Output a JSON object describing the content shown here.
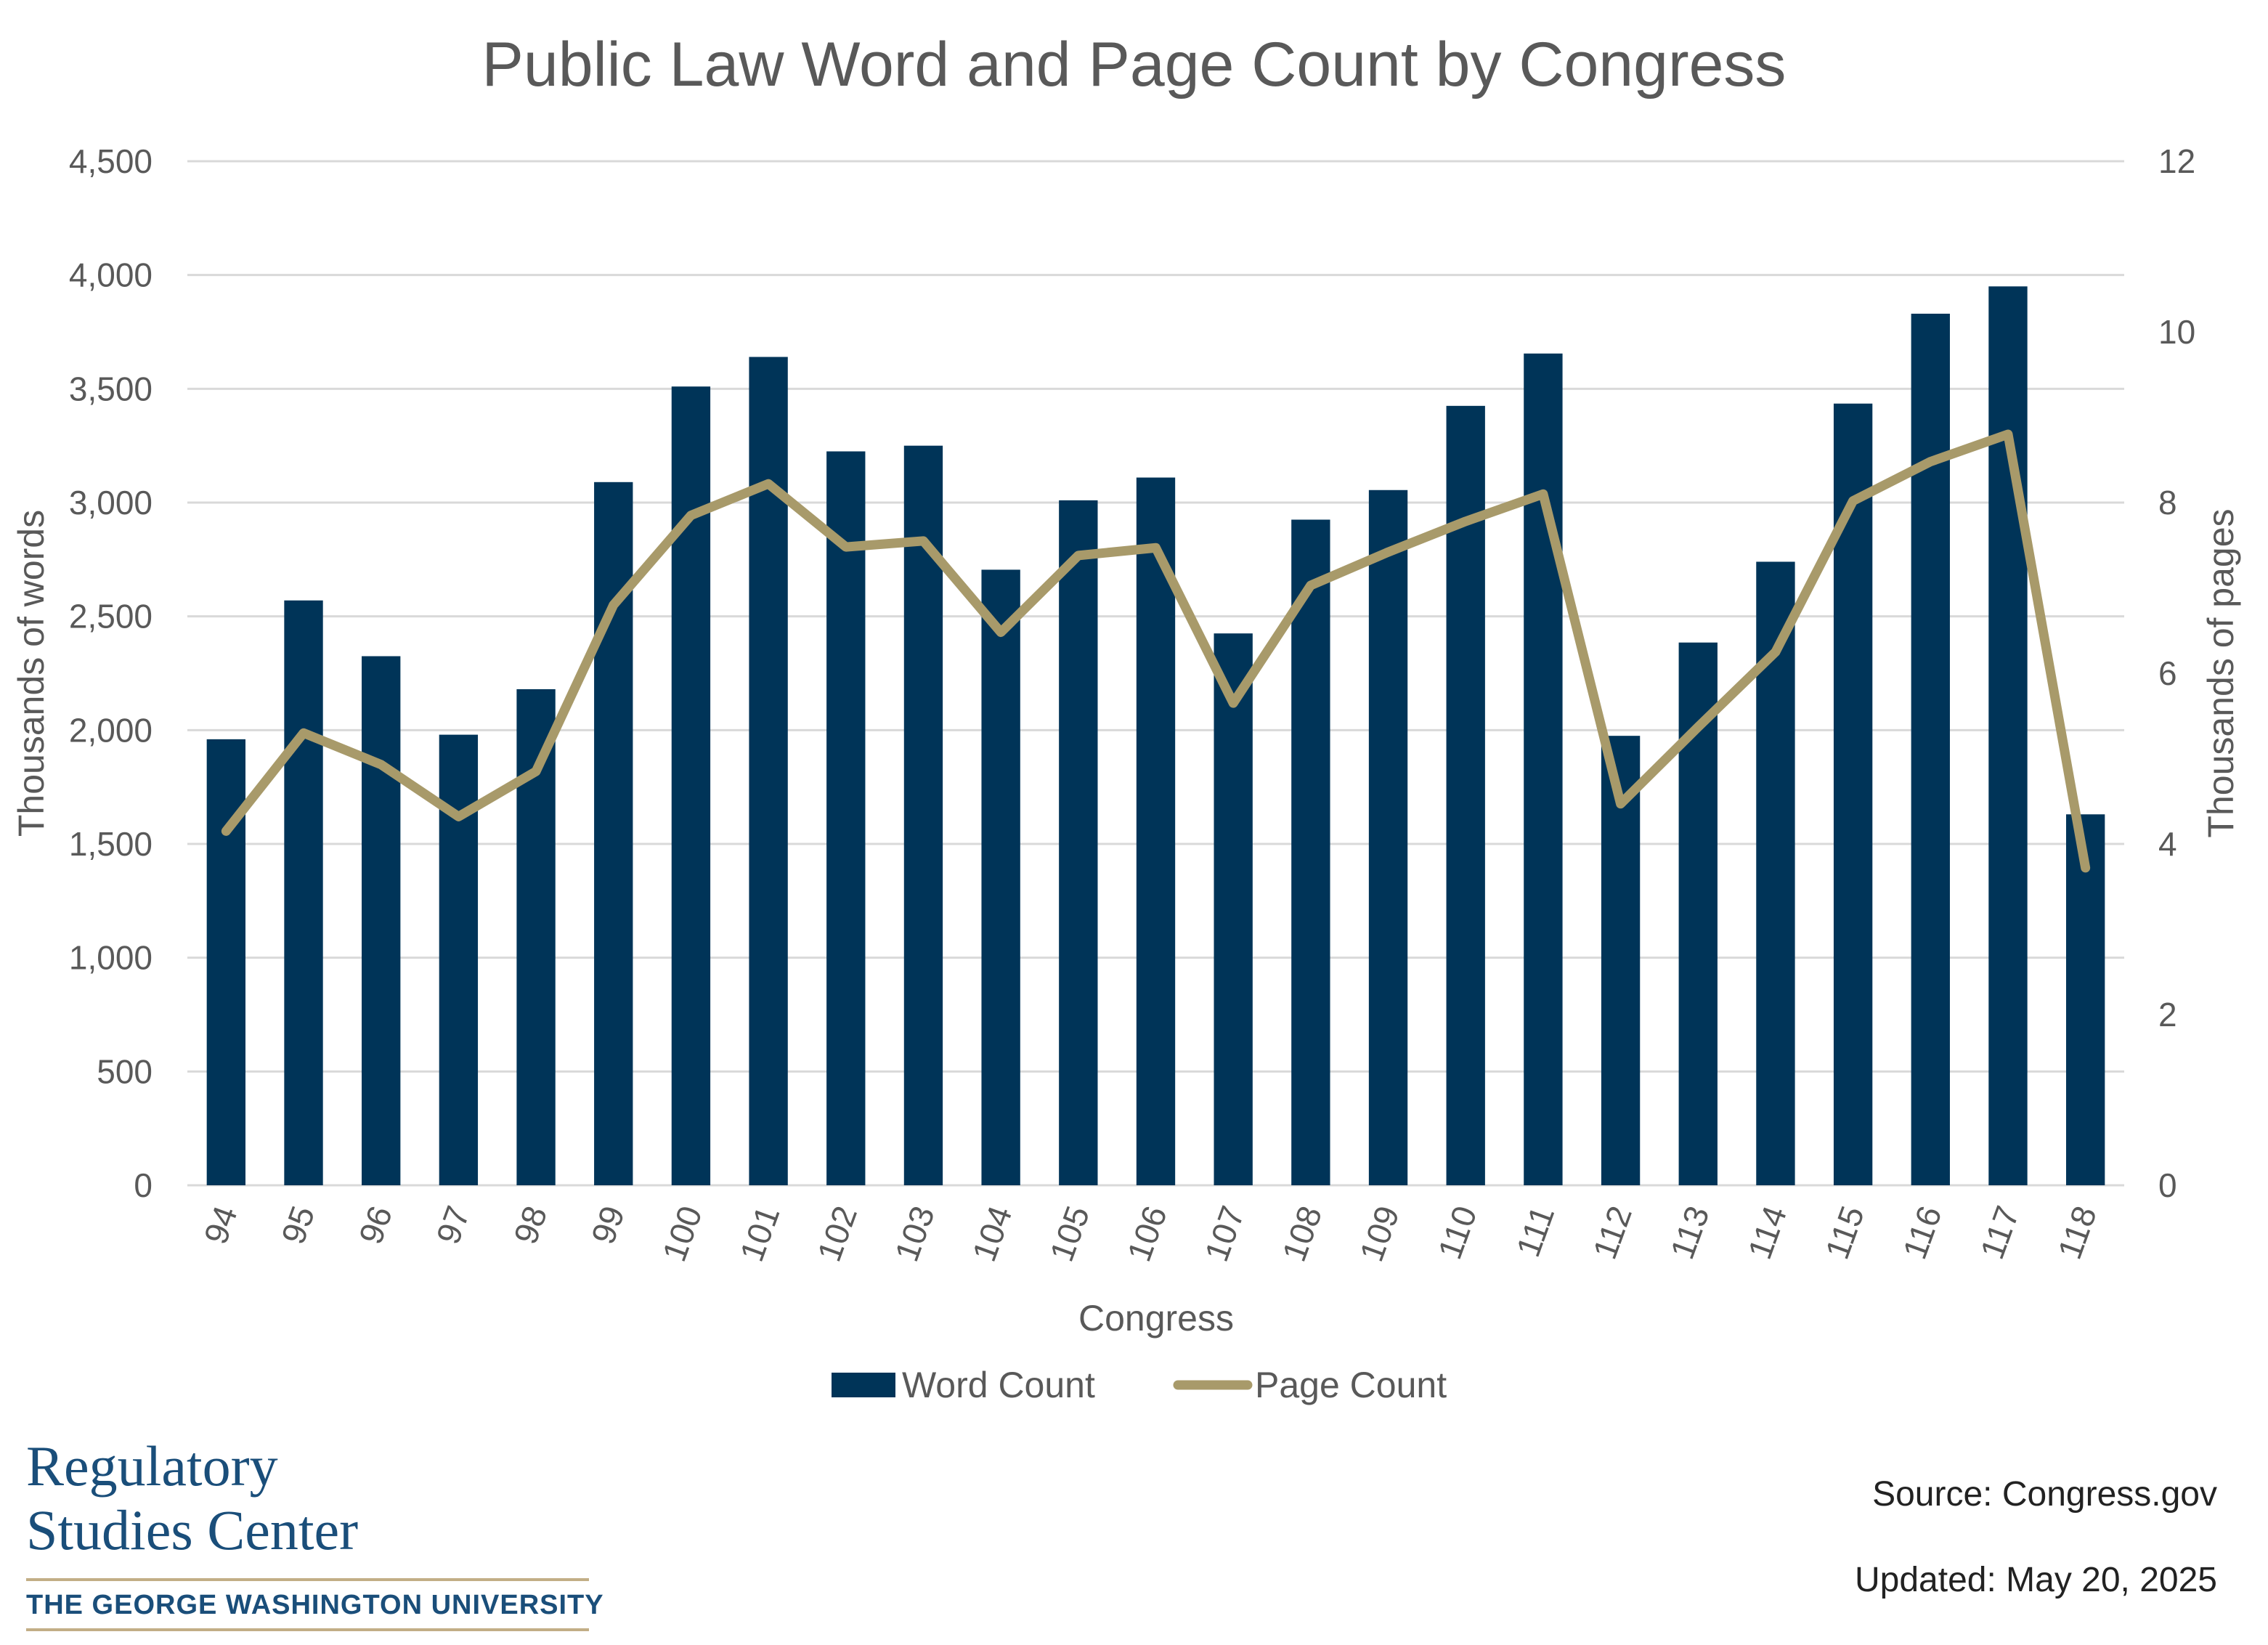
{
  "chart_data": {
    "type": "bar",
    "title": "Public Law Word and Page Count by Congress",
    "xlabel": "Congress",
    "ylabel": "Thousands of words",
    "y2label": "Thousands of pages",
    "categories": [
      "94",
      "95",
      "96",
      "97",
      "98",
      "99",
      "100",
      "101",
      "102",
      "103",
      "104",
      "105",
      "106",
      "107",
      "108",
      "109",
      "110",
      "111",
      "112",
      "113",
      "114",
      "115",
      "116",
      "117",
      "118"
    ],
    "series": [
      {
        "name": "Word Count",
        "type": "bar",
        "axis": "left",
        "color": "#003458",
        "values": [
          1960,
          2570,
          2325,
          1980,
          2180,
          3090,
          3510,
          3640,
          3225,
          3250,
          2705,
          3010,
          3110,
          2425,
          2925,
          3055,
          3425,
          3655,
          1975,
          2385,
          2740,
          3435,
          3830,
          3950,
          1630
        ]
      },
      {
        "name": "Page Count",
        "type": "line",
        "axis": "right",
        "color": "#a89a6a",
        "values": [
          4.15,
          5.3,
          4.93,
          4.32,
          4.85,
          6.8,
          7.85,
          8.22,
          7.48,
          7.55,
          6.48,
          7.38,
          7.47,
          5.65,
          7.03,
          7.42,
          7.78,
          8.1,
          4.47,
          5.37,
          6.25,
          8.02,
          8.48,
          8.8,
          3.72
        ]
      }
    ],
    "ylim": [
      0,
      4500
    ],
    "y2lim": [
      0,
      12
    ],
    "yticks": [
      "0",
      "500",
      "1,000",
      "1,500",
      "2,000",
      "2,500",
      "3,000",
      "3,500",
      "4,000",
      "4,500"
    ],
    "y2ticks": [
      "0",
      "2",
      "4",
      "6",
      "8",
      "10",
      "12"
    ],
    "grid": true,
    "legend_position": "bottom"
  },
  "footer": {
    "logo_line1": "Regulatory",
    "logo_line2": "Studies Center",
    "logo_university": "THE GEORGE WASHINGTON UNIVERSITY",
    "source": "Source: Congress.gov",
    "updated": "Updated: May 20, 2025"
  }
}
